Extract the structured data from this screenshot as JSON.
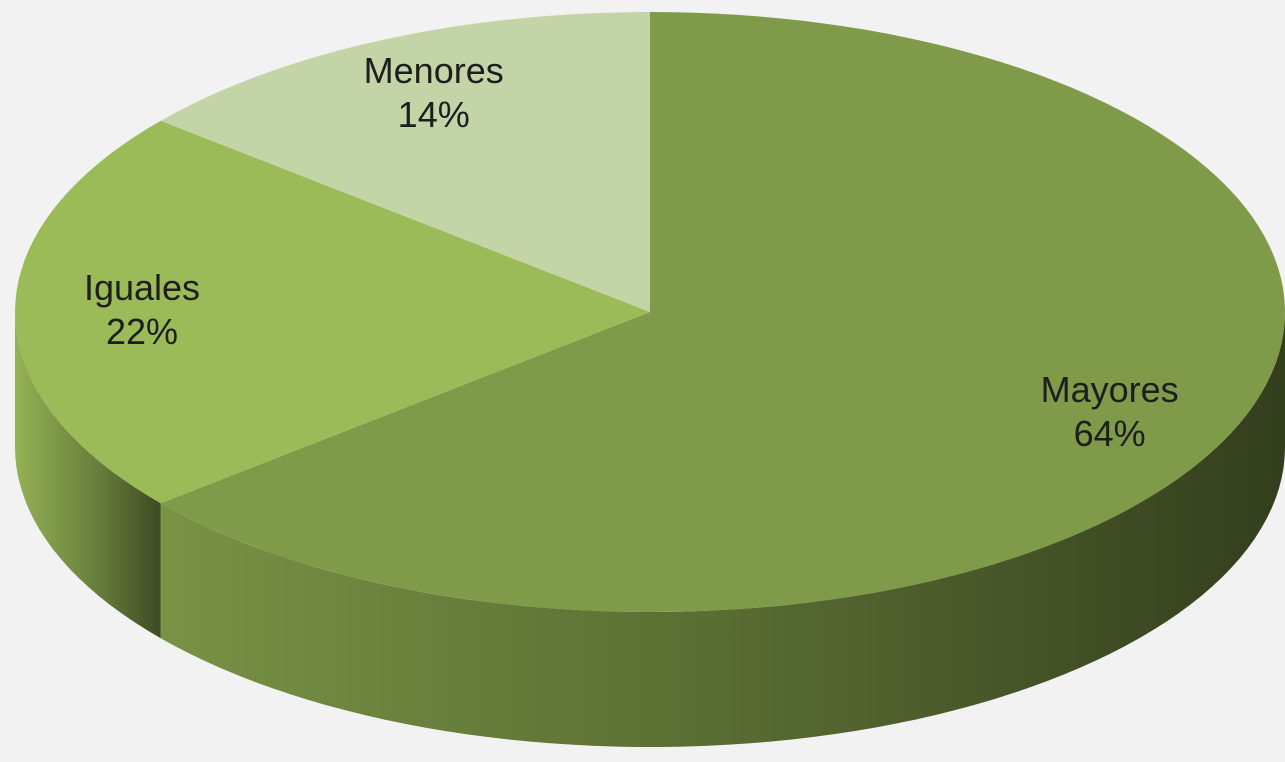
{
  "chart_data": {
    "type": "pie",
    "categories": [
      "Mayores",
      "Iguales",
      "Menores"
    ],
    "values": [
      64,
      22,
      14
    ],
    "value_labels": [
      "64%",
      "22%",
      "14%"
    ],
    "colors": [
      "#7f9a48",
      "#9bbb59",
      "#c3d5a7"
    ]
  }
}
